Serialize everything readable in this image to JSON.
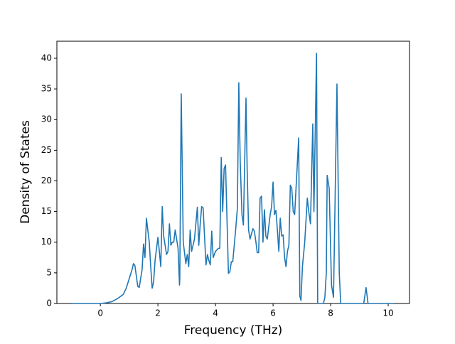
{
  "chart_data": {
    "type": "line",
    "xlabel": "Frequency (THz)",
    "ylabel": "Density of States",
    "x": [
      -1.0,
      -0.5,
      0.0,
      0.2,
      0.4,
      0.6,
      0.8,
      0.9,
      1.0,
      1.1,
      1.15,
      1.2,
      1.3,
      1.35,
      1.45,
      1.5,
      1.55,
      1.6,
      1.7,
      1.75,
      1.8,
      1.85,
      1.9,
      2.0,
      2.05,
      2.1,
      2.15,
      2.2,
      2.3,
      2.35,
      2.4,
      2.45,
      2.5,
      2.55,
      2.6,
      2.7,
      2.75,
      2.76,
      2.81,
      2.88,
      2.97,
      3.02,
      3.07,
      3.12,
      3.17,
      3.27,
      3.37,
      3.42,
      3.47,
      3.52,
      3.57,
      3.67,
      3.72,
      3.77,
      3.82,
      3.87,
      3.92,
      4.0,
      4.1,
      4.15,
      4.2,
      4.25,
      4.3,
      4.35,
      4.45,
      4.5,
      4.55,
      4.6,
      4.7,
      4.76,
      4.81,
      4.86,
      4.92,
      4.97,
      5.06,
      5.1,
      5.15,
      5.2,
      5.3,
      5.35,
      5.4,
      5.45,
      5.5,
      5.55,
      5.6,
      5.65,
      5.7,
      5.75,
      5.8,
      5.9,
      5.95,
      6.0,
      6.05,
      6.1,
      6.15,
      6.2,
      6.25,
      6.3,
      6.35,
      6.4,
      6.45,
      6.5,
      6.55,
      6.6,
      6.65,
      6.7,
      6.75,
      6.89,
      6.93,
      6.97,
      7.02,
      7.1,
      7.19,
      7.24,
      7.3,
      7.38,
      7.42,
      7.51,
      7.55,
      7.75,
      7.8,
      7.85,
      7.88,
      7.95,
      8.03,
      8.1,
      8.22,
      8.3,
      8.35,
      9.15,
      9.23,
      9.3,
      10.2
    ],
    "series": [
      {
        "color": "#1f77b4",
        "values": [
          0,
          0,
          0,
          0.1,
          0.3,
          0.8,
          1.5,
          2.5,
          4,
          5.5,
          6.5,
          6.2,
          2.8,
          2.6,
          5.5,
          9.7,
          7.5,
          13.9,
          10,
          6,
          2.5,
          3.5,
          7,
          10.8,
          8.5,
          6,
          15.8,
          11,
          8,
          8.5,
          13,
          9.5,
          10,
          10,
          12,
          9,
          3,
          4,
          34.2,
          10,
          6.5,
          8,
          6,
          12,
          8.5,
          10.5,
          15.7,
          9.5,
          13,
          15.8,
          15.6,
          6.3,
          8,
          7,
          6.3,
          11.8,
          7.5,
          8.5,
          9,
          9,
          23.8,
          15,
          22,
          22.6,
          4.9,
          5.2,
          6.8,
          6.8,
          12,
          15.5,
          36,
          23,
          14.5,
          12.8,
          33.5,
          22,
          12,
          10.5,
          12.2,
          11.8,
          10.2,
          8.3,
          8.3,
          17.2,
          17.5,
          10,
          15.3,
          11,
          10.5,
          14.5,
          15.8,
          19.8,
          14.5,
          15.2,
          12,
          8.5,
          13.9,
          11,
          11.2,
          7.5,
          6,
          8.5,
          9.5,
          19.3,
          18.8,
          15,
          14.5,
          27,
          1.2,
          0.5,
          6,
          10,
          17.2,
          15,
          13,
          29.3,
          15,
          40.8,
          0,
          0,
          1,
          5,
          20.9,
          18.8,
          3,
          1,
          35.8,
          5,
          0,
          0,
          2.6,
          0,
          0
        ]
      }
    ],
    "xlim": [
      -1.51,
      10.74
    ],
    "ylim": [
      0,
      42.78
    ],
    "xticks": [
      0,
      2,
      4,
      6,
      8,
      10
    ],
    "yticks": [
      0,
      5,
      10,
      15,
      20,
      25,
      30,
      35,
      40
    ]
  }
}
